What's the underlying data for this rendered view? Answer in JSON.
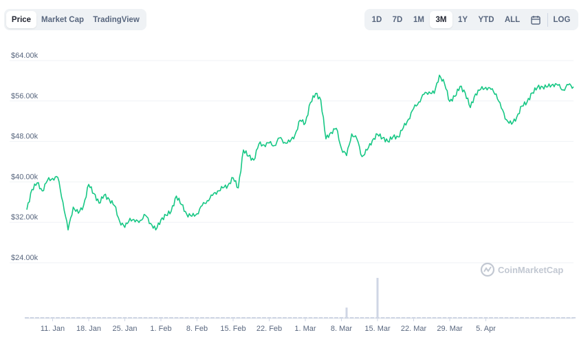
{
  "tabs": [
    {
      "label": "Price",
      "active": true
    },
    {
      "label": "Market Cap",
      "active": false
    },
    {
      "label": "TradingView",
      "active": false
    }
  ],
  "ranges": [
    {
      "label": "1D",
      "active": false
    },
    {
      "label": "7D",
      "active": false
    },
    {
      "label": "1M",
      "active": false
    },
    {
      "label": "3M",
      "active": true
    },
    {
      "label": "1Y",
      "active": false
    },
    {
      "label": "YTD",
      "active": false
    },
    {
      "label": "ALL",
      "active": false
    }
  ],
  "calendar_icon": "calendar-icon",
  "log_label": "LOG",
  "watermark": "CoinMarketCap",
  "chart_data": {
    "type": "line",
    "title": "",
    "xlabel": "",
    "ylabel": "",
    "line_color": "#16c784",
    "volume_color": "#cfd6e4",
    "grid": true,
    "ylim": [
      24000,
      64000
    ],
    "yticks": [
      {
        "value": 24000,
        "label": "$24.00k"
      },
      {
        "value": 32000,
        "label": "$32.00k"
      },
      {
        "value": 40000,
        "label": "$40.00k"
      },
      {
        "value": 48000,
        "label": "$48.00k"
      },
      {
        "value": 56000,
        "label": "$56.00k"
      },
      {
        "value": 64000,
        "label": "$64.00k"
      }
    ],
    "xticks": [
      "11. Jan",
      "18. Jan",
      "25. Jan",
      "1. Feb",
      "8. Feb",
      "15. Feb",
      "22. Feb",
      "1. Mar",
      "8. Mar",
      "15. Mar",
      "22. Mar",
      "29. Mar",
      "5. Apr"
    ],
    "x_start": "6 Jan",
    "x_end": "7 Apr",
    "price": [
      [
        0,
        34500
      ],
      [
        1,
        38500
      ],
      [
        2,
        39800
      ],
      [
        3,
        38200
      ],
      [
        4,
        40300
      ],
      [
        5,
        40700
      ],
      [
        6,
        40900
      ],
      [
        7,
        36000
      ],
      [
        8,
        30500
      ],
      [
        9,
        35000
      ],
      [
        10,
        33800
      ],
      [
        11,
        35300
      ],
      [
        12,
        39500
      ],
      [
        13,
        37700
      ],
      [
        14,
        35800
      ],
      [
        15,
        37400
      ],
      [
        16,
        36500
      ],
      [
        17,
        35300
      ],
      [
        18,
        32200
      ],
      [
        19,
        31000
      ],
      [
        20,
        32800
      ],
      [
        21,
        32100
      ],
      [
        22,
        32400
      ],
      [
        23,
        33400
      ],
      [
        24,
        31800
      ],
      [
        25,
        30500
      ],
      [
        26,
        32500
      ],
      [
        27,
        33400
      ],
      [
        28,
        34200
      ],
      [
        29,
        37200
      ],
      [
        30,
        35500
      ],
      [
        31,
        33600
      ],
      [
        32,
        33200
      ],
      [
        33,
        33700
      ],
      [
        34,
        35300
      ],
      [
        35,
        36300
      ],
      [
        36,
        37300
      ],
      [
        37,
        38200
      ],
      [
        38,
        38800
      ],
      [
        39,
        39300
      ],
      [
        40,
        40800
      ],
      [
        41,
        38800
      ],
      [
        42,
        46300
      ],
      [
        43,
        45100
      ],
      [
        44,
        44300
      ],
      [
        45,
        47500
      ],
      [
        46,
        47300
      ],
      [
        47,
        47700
      ],
      [
        48,
        47200
      ],
      [
        49,
        48700
      ],
      [
        50,
        47800
      ],
      [
        51,
        47900
      ],
      [
        52,
        49300
      ],
      [
        53,
        52200
      ],
      [
        54,
        51600
      ],
      [
        55,
        55700
      ],
      [
        56,
        57500
      ],
      [
        57,
        56200
      ],
      [
        58,
        48500
      ],
      [
        59,
        49800
      ],
      [
        60,
        50600
      ],
      [
        61,
        46600
      ],
      [
        62,
        45200
      ],
      [
        63,
        49500
      ],
      [
        64,
        48500
      ],
      [
        65,
        45000
      ],
      [
        66,
        46300
      ],
      [
        67,
        48200
      ],
      [
        68,
        49400
      ],
      [
        69,
        48700
      ],
      [
        70,
        48000
      ],
      [
        71,
        48900
      ],
      [
        72,
        48900
      ],
      [
        73,
        50700
      ],
      [
        74,
        52400
      ],
      [
        75,
        54500
      ],
      [
        76,
        55800
      ],
      [
        77,
        57300
      ],
      [
        78,
        57800
      ],
      [
        79,
        57500
      ],
      [
        80,
        61100
      ],
      [
        81,
        59400
      ],
      [
        82,
        55900
      ],
      [
        83,
        56900
      ],
      [
        84,
        58900
      ],
      [
        85,
        57600
      ],
      [
        86,
        54700
      ],
      [
        87,
        57400
      ],
      [
        88,
        58300
      ],
      [
        89,
        58700
      ],
      [
        90,
        58300
      ],
      [
        91,
        57400
      ],
      [
        92,
        54600
      ],
      [
        93,
        52300
      ],
      [
        94,
        51400
      ],
      [
        95,
        52800
      ],
      [
        96,
        55000
      ],
      [
        97,
        55800
      ],
      [
        98,
        57600
      ],
      [
        99,
        58700
      ],
      [
        100,
        58800
      ],
      [
        101,
        58800
      ],
      [
        102,
        59300
      ],
      [
        103,
        59100
      ],
      [
        104,
        58200
      ],
      [
        105,
        59200
      ],
      [
        106,
        58800
      ]
    ],
    "volume": [
      [
        0,
        0.02
      ],
      [
        10,
        0.02
      ],
      [
        20,
        0.02
      ],
      [
        30,
        0.02
      ],
      [
        40,
        0.02
      ],
      [
        50,
        0.02
      ],
      [
        60,
        0.02
      ],
      [
        65,
        0.22
      ],
      [
        68,
        0.02
      ],
      [
        70,
        0.02
      ],
      [
        80,
        0.02
      ],
      [
        90,
        0.02
      ],
      [
        100,
        0.02
      ],
      [
        106,
        0.02
      ]
    ],
    "volume_spike_values": [
      [
        62,
        0.22
      ],
      [
        68,
        0.82
      ]
    ]
  }
}
